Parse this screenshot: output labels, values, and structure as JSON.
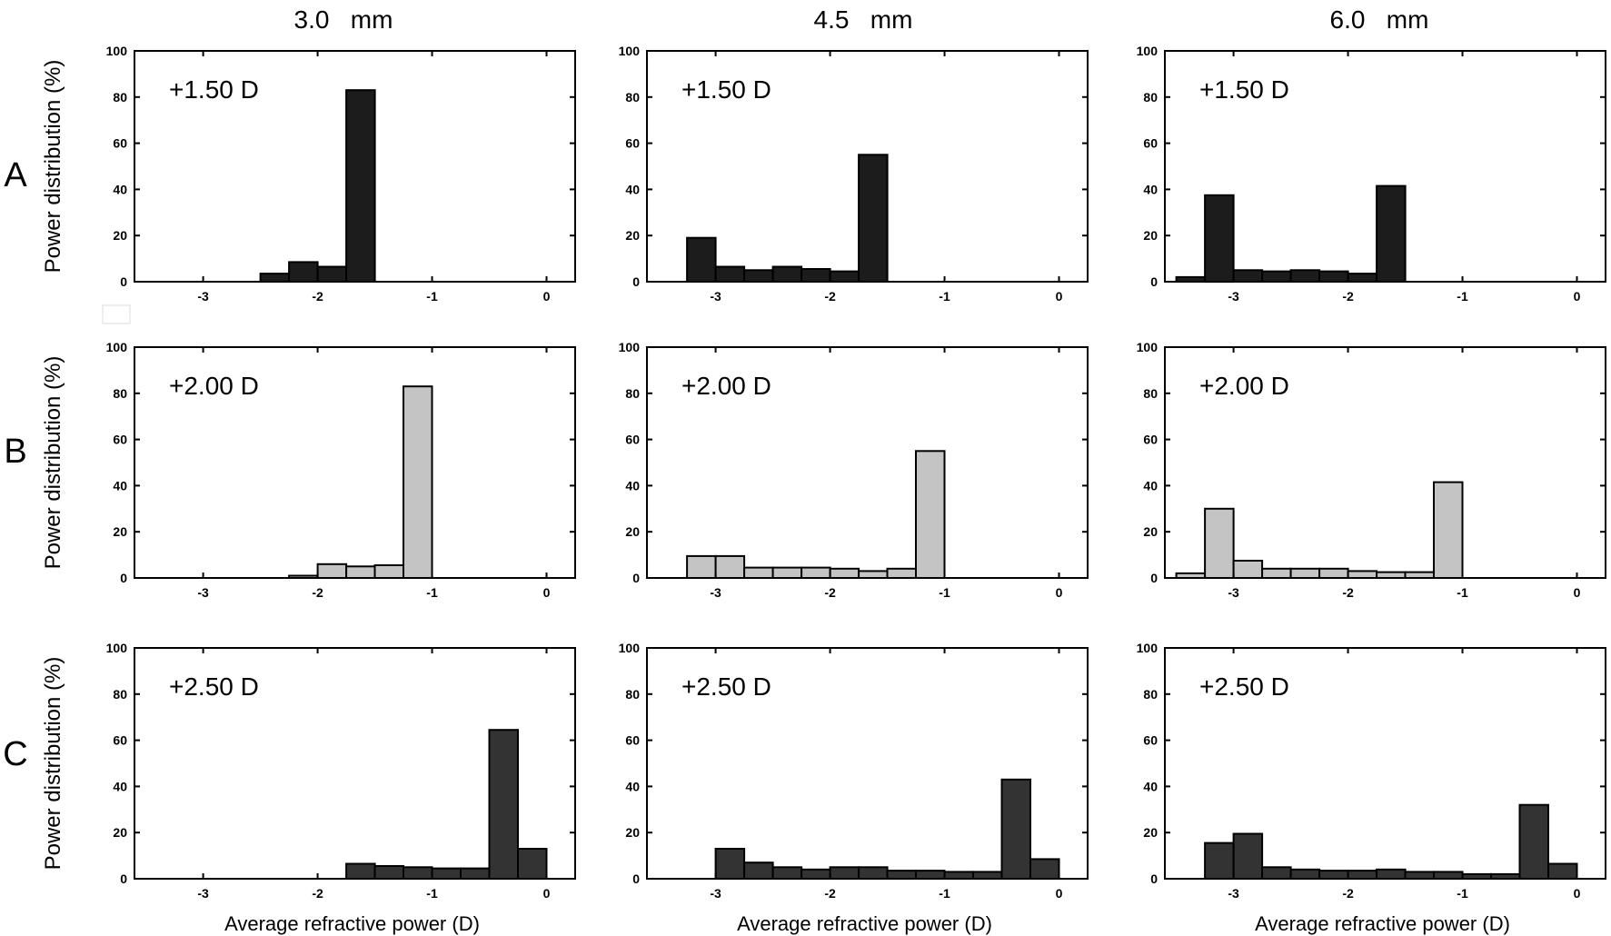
{
  "figure": {
    "column_titles": [
      "3.0   mm",
      "4.5   mm",
      "6.0   mm"
    ],
    "row_labels": [
      "A",
      "B",
      "C"
    ],
    "colors": {
      "A": "#1c1c1c",
      "B": "#c4c4c4",
      "C": "#333333"
    }
  },
  "chart_data": [
    {
      "type": "bar",
      "row": "A",
      "column": "3.0   mm",
      "annotation": "+1.50 D",
      "xlabel": "",
      "ylabel": "Power distribution (%)",
      "xlim": [
        -3.6,
        0.25
      ],
      "ylim": [
        0,
        100
      ],
      "xticks": [
        -3,
        -2,
        -1,
        0
      ],
      "yticks": [
        0,
        20,
        40,
        60,
        80,
        100
      ],
      "bin_width": 0.25,
      "x": [
        -2.375,
        -2.125,
        -1.875,
        -1.625
      ],
      "values": [
        3.5,
        8.5,
        6.5,
        83
      ]
    },
    {
      "type": "bar",
      "row": "A",
      "column": "4.5   mm",
      "annotation": "+1.50 D",
      "xlabel": "",
      "ylabel": "",
      "xlim": [
        -3.6,
        0.25
      ],
      "ylim": [
        0,
        100
      ],
      "xticks": [
        -3,
        -2,
        -1,
        0
      ],
      "yticks": [
        0,
        20,
        40,
        60,
        80,
        100
      ],
      "bin_width": 0.25,
      "x": [
        -3.125,
        -2.875,
        -2.625,
        -2.375,
        -2.125,
        -1.875,
        -1.625
      ],
      "values": [
        19,
        6.5,
        5,
        6.5,
        5.5,
        4.5,
        55
      ]
    },
    {
      "type": "bar",
      "row": "A",
      "column": "6.0   mm",
      "annotation": "+1.50 D",
      "xlabel": "",
      "ylabel": "",
      "xlim": [
        -3.6,
        0.25
      ],
      "ylim": [
        0,
        100
      ],
      "xticks": [
        -3,
        -2,
        -1,
        0
      ],
      "yticks": [
        0,
        20,
        40,
        60,
        80,
        100
      ],
      "bin_width": 0.25,
      "x": [
        -3.375,
        -3.125,
        -2.875,
        -2.625,
        -2.375,
        -2.125,
        -1.875,
        -1.625
      ],
      "values": [
        2,
        37.5,
        5,
        4.5,
        5,
        4.5,
        3.5,
        41.5
      ]
    },
    {
      "type": "bar",
      "row": "B",
      "column": "3.0   mm",
      "annotation": "+2.00 D",
      "xlabel": "",
      "ylabel": "Power distribution (%)",
      "xlim": [
        -3.6,
        0.25
      ],
      "ylim": [
        0,
        100
      ],
      "xticks": [
        -3,
        -2,
        -1,
        0
      ],
      "yticks": [
        0,
        20,
        40,
        60,
        80,
        100
      ],
      "bin_width": 0.25,
      "x": [
        -2.125,
        -1.875,
        -1.625,
        -1.375,
        -1.125
      ],
      "values": [
        1,
        6,
        5,
        5.5,
        83
      ]
    },
    {
      "type": "bar",
      "row": "B",
      "column": "4.5   mm",
      "annotation": "+2.00 D",
      "xlabel": "",
      "ylabel": "",
      "xlim": [
        -3.6,
        0.25
      ],
      "ylim": [
        0,
        100
      ],
      "xticks": [
        -3,
        -2,
        -1,
        0
      ],
      "yticks": [
        0,
        20,
        40,
        60,
        80,
        100
      ],
      "bin_width": 0.25,
      "x": [
        -3.125,
        -2.875,
        -2.625,
        -2.375,
        -2.125,
        -1.875,
        -1.625,
        -1.375,
        -1.125
      ],
      "values": [
        9.5,
        9.5,
        4.5,
        4.5,
        4.5,
        4,
        3,
        4,
        55
      ]
    },
    {
      "type": "bar",
      "row": "B",
      "column": "6.0   mm",
      "annotation": "+2.00 D",
      "xlabel": "",
      "ylabel": "",
      "xlim": [
        -3.6,
        0.25
      ],
      "ylim": [
        0,
        100
      ],
      "xticks": [
        -3,
        -2,
        -1,
        0
      ],
      "yticks": [
        0,
        20,
        40,
        60,
        80,
        100
      ],
      "bin_width": 0.25,
      "x": [
        -3.375,
        -3.125,
        -2.875,
        -2.625,
        -2.375,
        -2.125,
        -1.875,
        -1.625,
        -1.375,
        -1.125
      ],
      "values": [
        2,
        30,
        7.5,
        4,
        4,
        4,
        3,
        2.5,
        2.5,
        41.5
      ]
    },
    {
      "type": "bar",
      "row": "C",
      "column": "3.0   mm",
      "annotation": "+2.50 D",
      "xlabel": "Average refractive power (D)",
      "ylabel": "Power distribution (%)",
      "xlim": [
        -3.6,
        0.25
      ],
      "ylim": [
        0,
        100
      ],
      "xticks": [
        -3,
        -2,
        -1,
        0
      ],
      "yticks": [
        0,
        20,
        40,
        60,
        80,
        100
      ],
      "bin_width": 0.25,
      "x": [
        -1.625,
        -1.375,
        -1.125,
        -0.875,
        -0.625,
        -0.375,
        -0.125
      ],
      "values": [
        6.5,
        5.5,
        5,
        4.5,
        4.5,
        64.5,
        13
      ]
    },
    {
      "type": "bar",
      "row": "C",
      "column": "4.5   mm",
      "annotation": "+2.50 D",
      "xlabel": "Average refractive power (D)",
      "ylabel": "",
      "xlim": [
        -3.6,
        0.25
      ],
      "ylim": [
        0,
        100
      ],
      "xticks": [
        -3,
        -2,
        -1,
        0
      ],
      "yticks": [
        0,
        20,
        40,
        60,
        80,
        100
      ],
      "bin_width": 0.25,
      "x": [
        -2.875,
        -2.625,
        -2.375,
        -2.125,
        -1.875,
        -1.625,
        -1.375,
        -1.125,
        -0.875,
        -0.625,
        -0.375,
        -0.125
      ],
      "values": [
        13,
        7,
        5,
        4,
        5,
        5,
        3.5,
        3.5,
        3,
        3,
        43,
        8.5
      ]
    },
    {
      "type": "bar",
      "row": "C",
      "column": "6.0   mm",
      "annotation": "+2.50 D",
      "xlabel": "Average refractive power (D)",
      "ylabel": "",
      "xlim": [
        -3.6,
        0.25
      ],
      "ylim": [
        0,
        100
      ],
      "xticks": [
        -3,
        -2,
        -1,
        0
      ],
      "yticks": [
        0,
        20,
        40,
        60,
        80,
        100
      ],
      "bin_width": 0.25,
      "x": [
        -3.125,
        -2.875,
        -2.625,
        -2.375,
        -2.125,
        -1.875,
        -1.625,
        -1.375,
        -1.125,
        -0.875,
        -0.625,
        -0.375,
        -0.125
      ],
      "values": [
        15.5,
        19.5,
        5,
        4,
        3.5,
        3.5,
        4,
        3,
        3,
        2,
        2,
        32,
        6.5
      ]
    }
  ]
}
